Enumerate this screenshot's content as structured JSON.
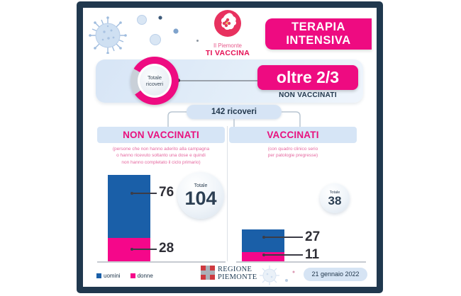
{
  "colors": {
    "pink": "#EE0B81",
    "bar_pink": "#F5078A",
    "bar_blue": "#1A5FA8",
    "navy_frame": "#20384E",
    "light_blue": "#D6E4F5",
    "gray_slice": "#C9D0D8"
  },
  "header": {
    "logo": {
      "line1": "Il Piemonte",
      "line2": "TI VACCINA"
    },
    "title": {
      "line1": "TERAPIA",
      "line2": "INTENSIVA"
    }
  },
  "hero": {
    "donut_label": {
      "line1": "Totale",
      "line2": "ricoveri"
    },
    "badge": "oltre 2/3",
    "badge_sub": "NON VACCINATI"
  },
  "total_pill": "142 ricoveri",
  "columns": [
    {
      "title": "NON VACCINATI",
      "desc_line1": "(persone che non hanno aderito alla campagna",
      "desc_line2": "o hanno ricevuto soltanto una dose e quindi",
      "desc_line3": "non hanno completato il ciclo primario)",
      "total_label": "Totale",
      "total": "104",
      "men": "76",
      "women": "28"
    },
    {
      "title": "VACCINATI",
      "desc_line1": "(con quadro clinico serio",
      "desc_line2": "per patologie pregresse)",
      "total_label": "Totale",
      "total": "38",
      "men": "27",
      "women": "11"
    }
  ],
  "legend": [
    {
      "label": "uomini",
      "color": "#1A5FA8"
    },
    {
      "label": "donne",
      "color": "#F5078A"
    }
  ],
  "footer": {
    "region": {
      "line1": "REGIONE",
      "line2": "PIEMONTE"
    },
    "date": "21 gennaio 2022"
  },
  "chart_data": [
    {
      "type": "pie",
      "title": "Totale ricoveri",
      "annotation": "oltre 2/3 NON VACCINATI",
      "total_ricoveri": 142,
      "slices": [
        {
          "label": "non vaccinati",
          "share": "oltre 2/3",
          "color": "#EE0B81"
        },
        {
          "label": "vaccinati",
          "share": "meno di 1/3",
          "color": "#C9D0D8"
        }
      ]
    },
    {
      "type": "bar",
      "title": "NON VACCINATI",
      "stacked": true,
      "categories": [
        "uomini",
        "donne"
      ],
      "values": [
        76,
        28
      ],
      "total": 104,
      "colors": [
        "#1A5FA8",
        "#F5078A"
      ]
    },
    {
      "type": "bar",
      "title": "VACCINATI",
      "stacked": true,
      "categories": [
        "uomini",
        "donne"
      ],
      "values": [
        27,
        11
      ],
      "total": 38,
      "colors": [
        "#1A5FA8",
        "#F5078A"
      ]
    }
  ]
}
